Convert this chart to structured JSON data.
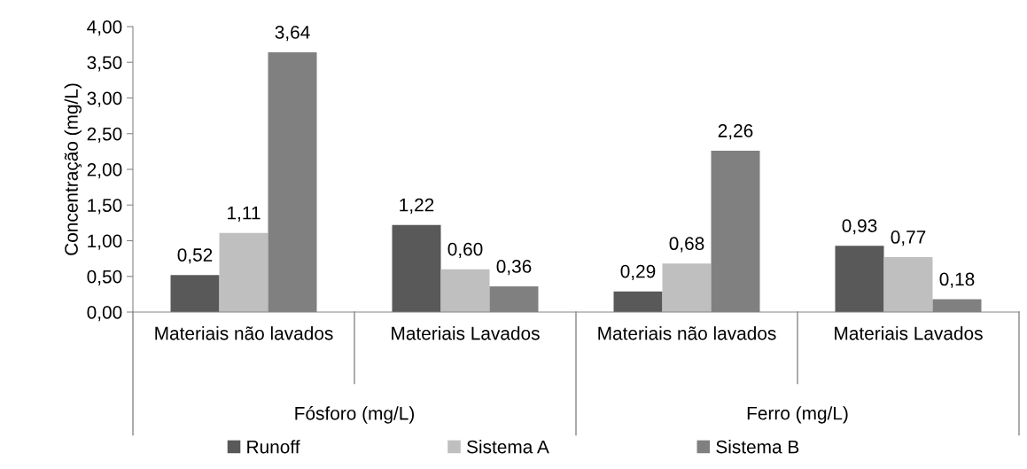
{
  "chart_data": {
    "type": "bar",
    "ylabel": "Concentração (mg/L)",
    "categories": [
      "Materiais não lavados",
      "Materiais Lavados",
      "Materiais não lavados",
      "Materiais Lavados"
    ],
    "annotations": [
      "Fósforo (mg/L)",
      "Ferro (mg/L)"
    ],
    "series": [
      {
        "name": "Runoff",
        "color": "#595959",
        "values": [
          0.52,
          1.22,
          0.29,
          0.93
        ],
        "value_labels": [
          "0,52",
          "1,22",
          "0,29",
          "0,93"
        ]
      },
      {
        "name": "Sistema A",
        "color": "#bfbfbf",
        "values": [
          1.11,
          0.6,
          0.68,
          0.77
        ],
        "value_labels": [
          "1,11",
          "0,60",
          "0,68",
          "0,77"
        ]
      },
      {
        "name": "Sistema B",
        "color": "#808080",
        "values": [
          3.64,
          0.36,
          2.26,
          0.18
        ],
        "value_labels": [
          "3,64",
          "0,36",
          "2,26",
          "0,18"
        ]
      }
    ],
    "ylim": [
      0,
      4
    ],
    "yticks": [
      {
        "value": 0,
        "label": "0,00"
      },
      {
        "value": 0.5,
        "label": "0,50"
      },
      {
        "value": 1,
        "label": "1,00"
      },
      {
        "value": 1.5,
        "label": "1,50"
      },
      {
        "value": 2,
        "label": "2,00"
      },
      {
        "value": 2.5,
        "label": "2,50"
      },
      {
        "value": 3,
        "label": "3,00"
      },
      {
        "value": 3.5,
        "label": "3,50"
      },
      {
        "value": 4,
        "label": "4,00"
      }
    ],
    "grid": false,
    "legend": "bottom"
  }
}
